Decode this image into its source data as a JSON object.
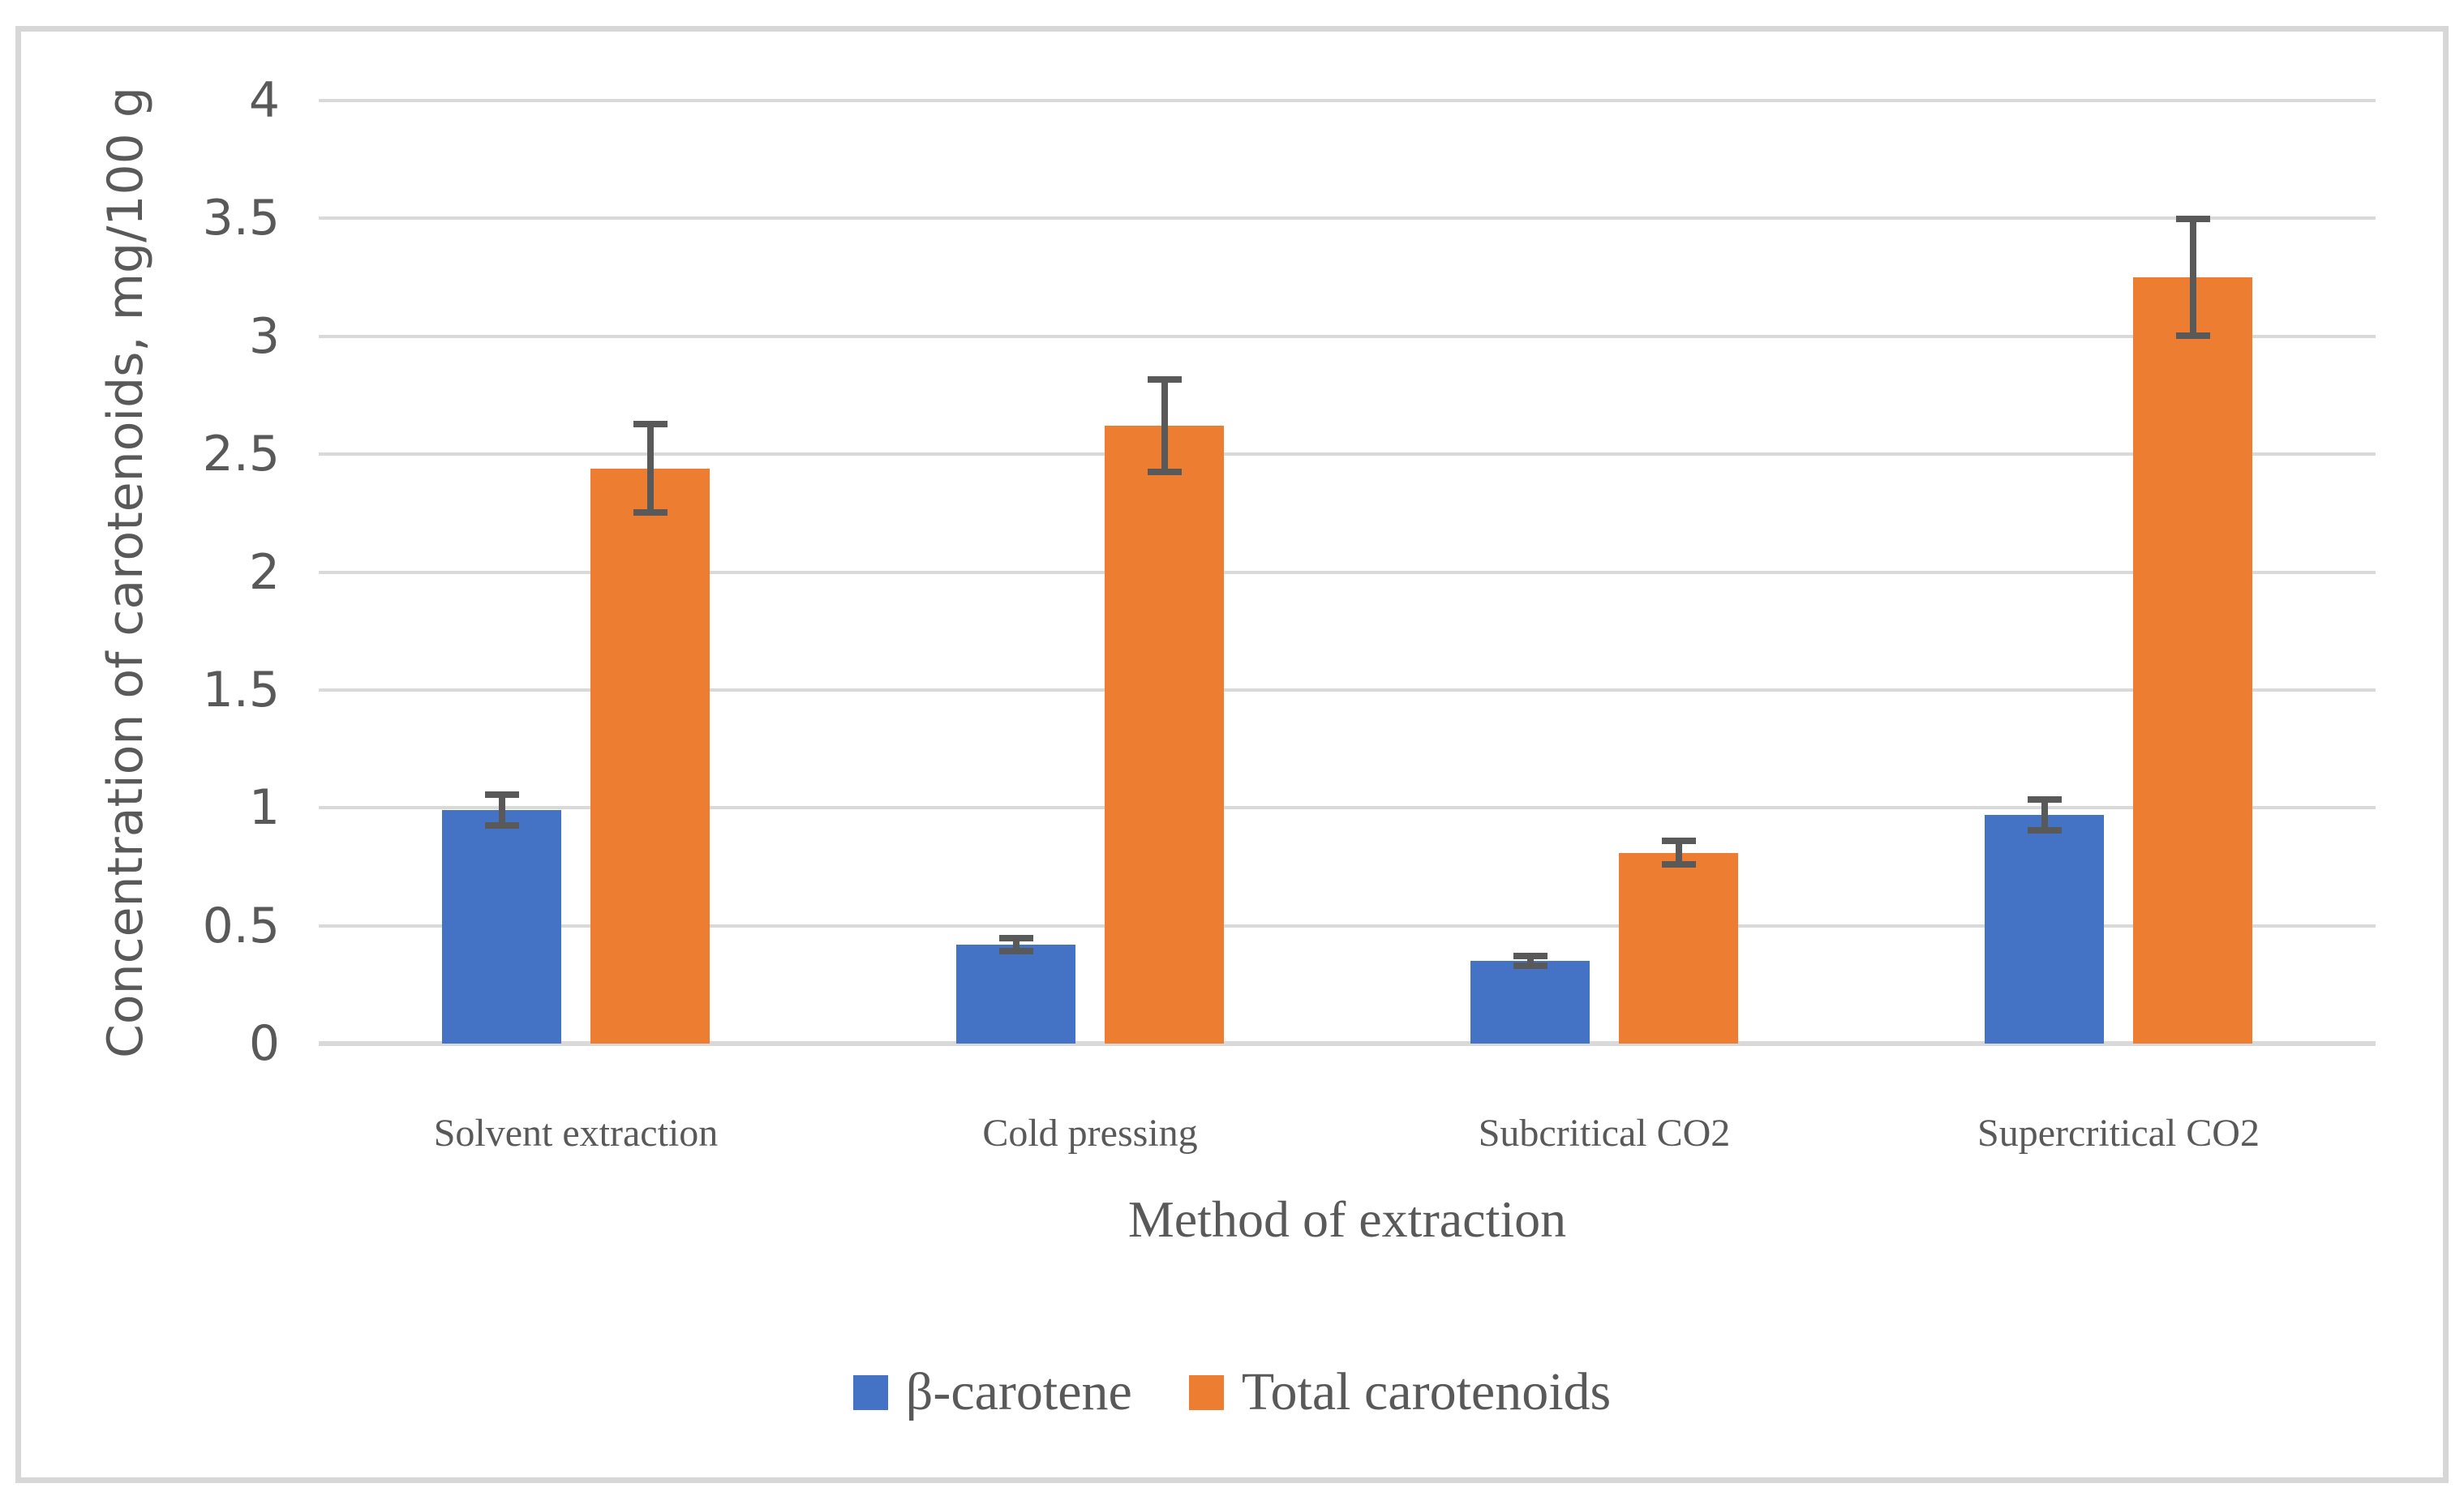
{
  "figure": {
    "background": "#ffffff",
    "frame_color": "#d7d7d7",
    "text_color": "#595959",
    "gridline_color": "#d9d9d9",
    "error_bar_color": "#595959"
  },
  "chart_data": {
    "type": "bar",
    "title": "",
    "xlabel": "Method of extraction",
    "ylabel": "Concentration of carotenoids, mg/100 g",
    "categories": [
      "Solvent extraction",
      "Cold pressing",
      "Subcritical CO2",
      "Supercritical CO2"
    ],
    "series": [
      {
        "name": "β-carotene",
        "color": "#4472c4",
        "values": [
          0.99,
          0.42,
          0.35,
          0.97
        ],
        "error_bars": [
          0.08,
          0.04,
          0.035,
          0.08
        ]
      },
      {
        "name": "Total carotenoids",
        "color": "#ed7d31",
        "values": [
          2.44,
          2.62,
          0.81,
          3.25
        ],
        "error_bars": [
          0.2,
          0.21,
          0.065,
          0.26
        ]
      }
    ],
    "ylim": [
      0,
      4
    ],
    "y_ticks": [
      "0",
      "0.5",
      "1",
      "1.5",
      "2",
      "2.5",
      "3",
      "3.5",
      "4"
    ],
    "grid": true,
    "legend_position": "bottom"
  }
}
